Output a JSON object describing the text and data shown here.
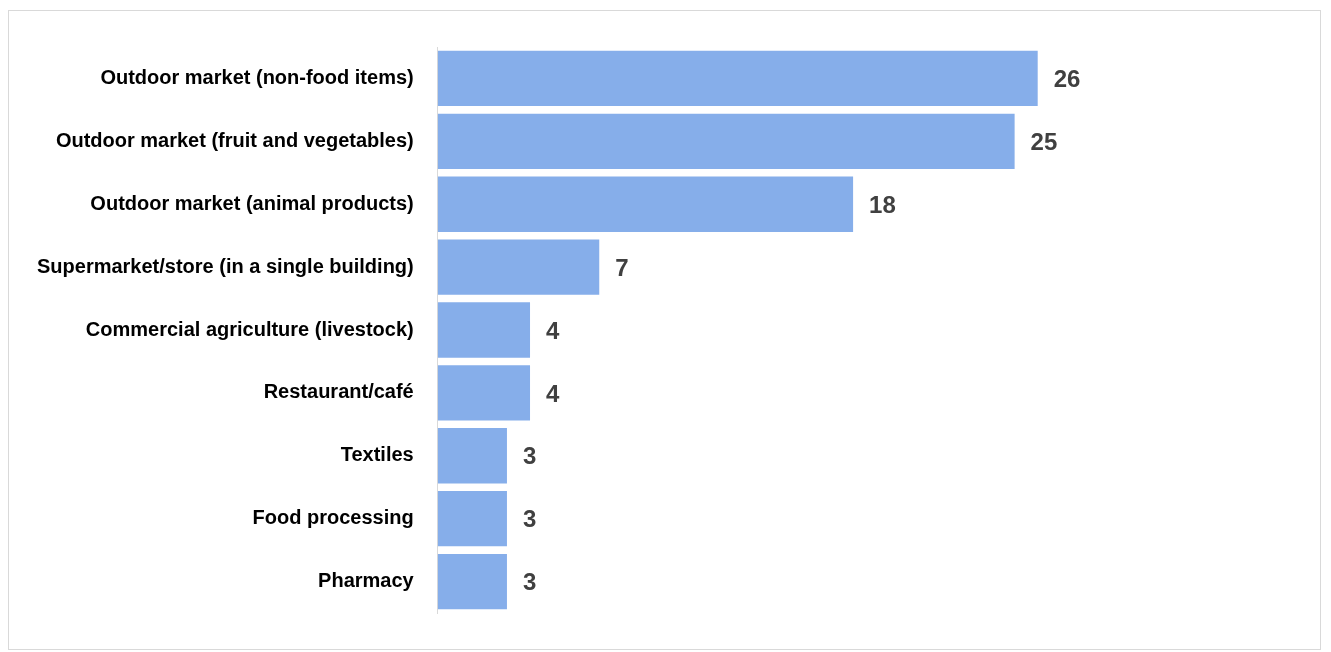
{
  "chart_data": {
    "type": "bar",
    "orientation": "horizontal",
    "categories": [
      "Outdoor market (non-food items)",
      "Outdoor market (fruit and vegetables)",
      "Outdoor market (animal products)",
      "Supermarket/store (in a single building)",
      "Commercial agriculture (livestock)",
      "Restaurant/café",
      "Textiles",
      "Food processing",
      "Pharmacy"
    ],
    "values": [
      26,
      25,
      18,
      7,
      4,
      4,
      3,
      3,
      3
    ],
    "color": "#86aeea",
    "data_labels": true,
    "legend": false,
    "tick_labels": "y"
  }
}
